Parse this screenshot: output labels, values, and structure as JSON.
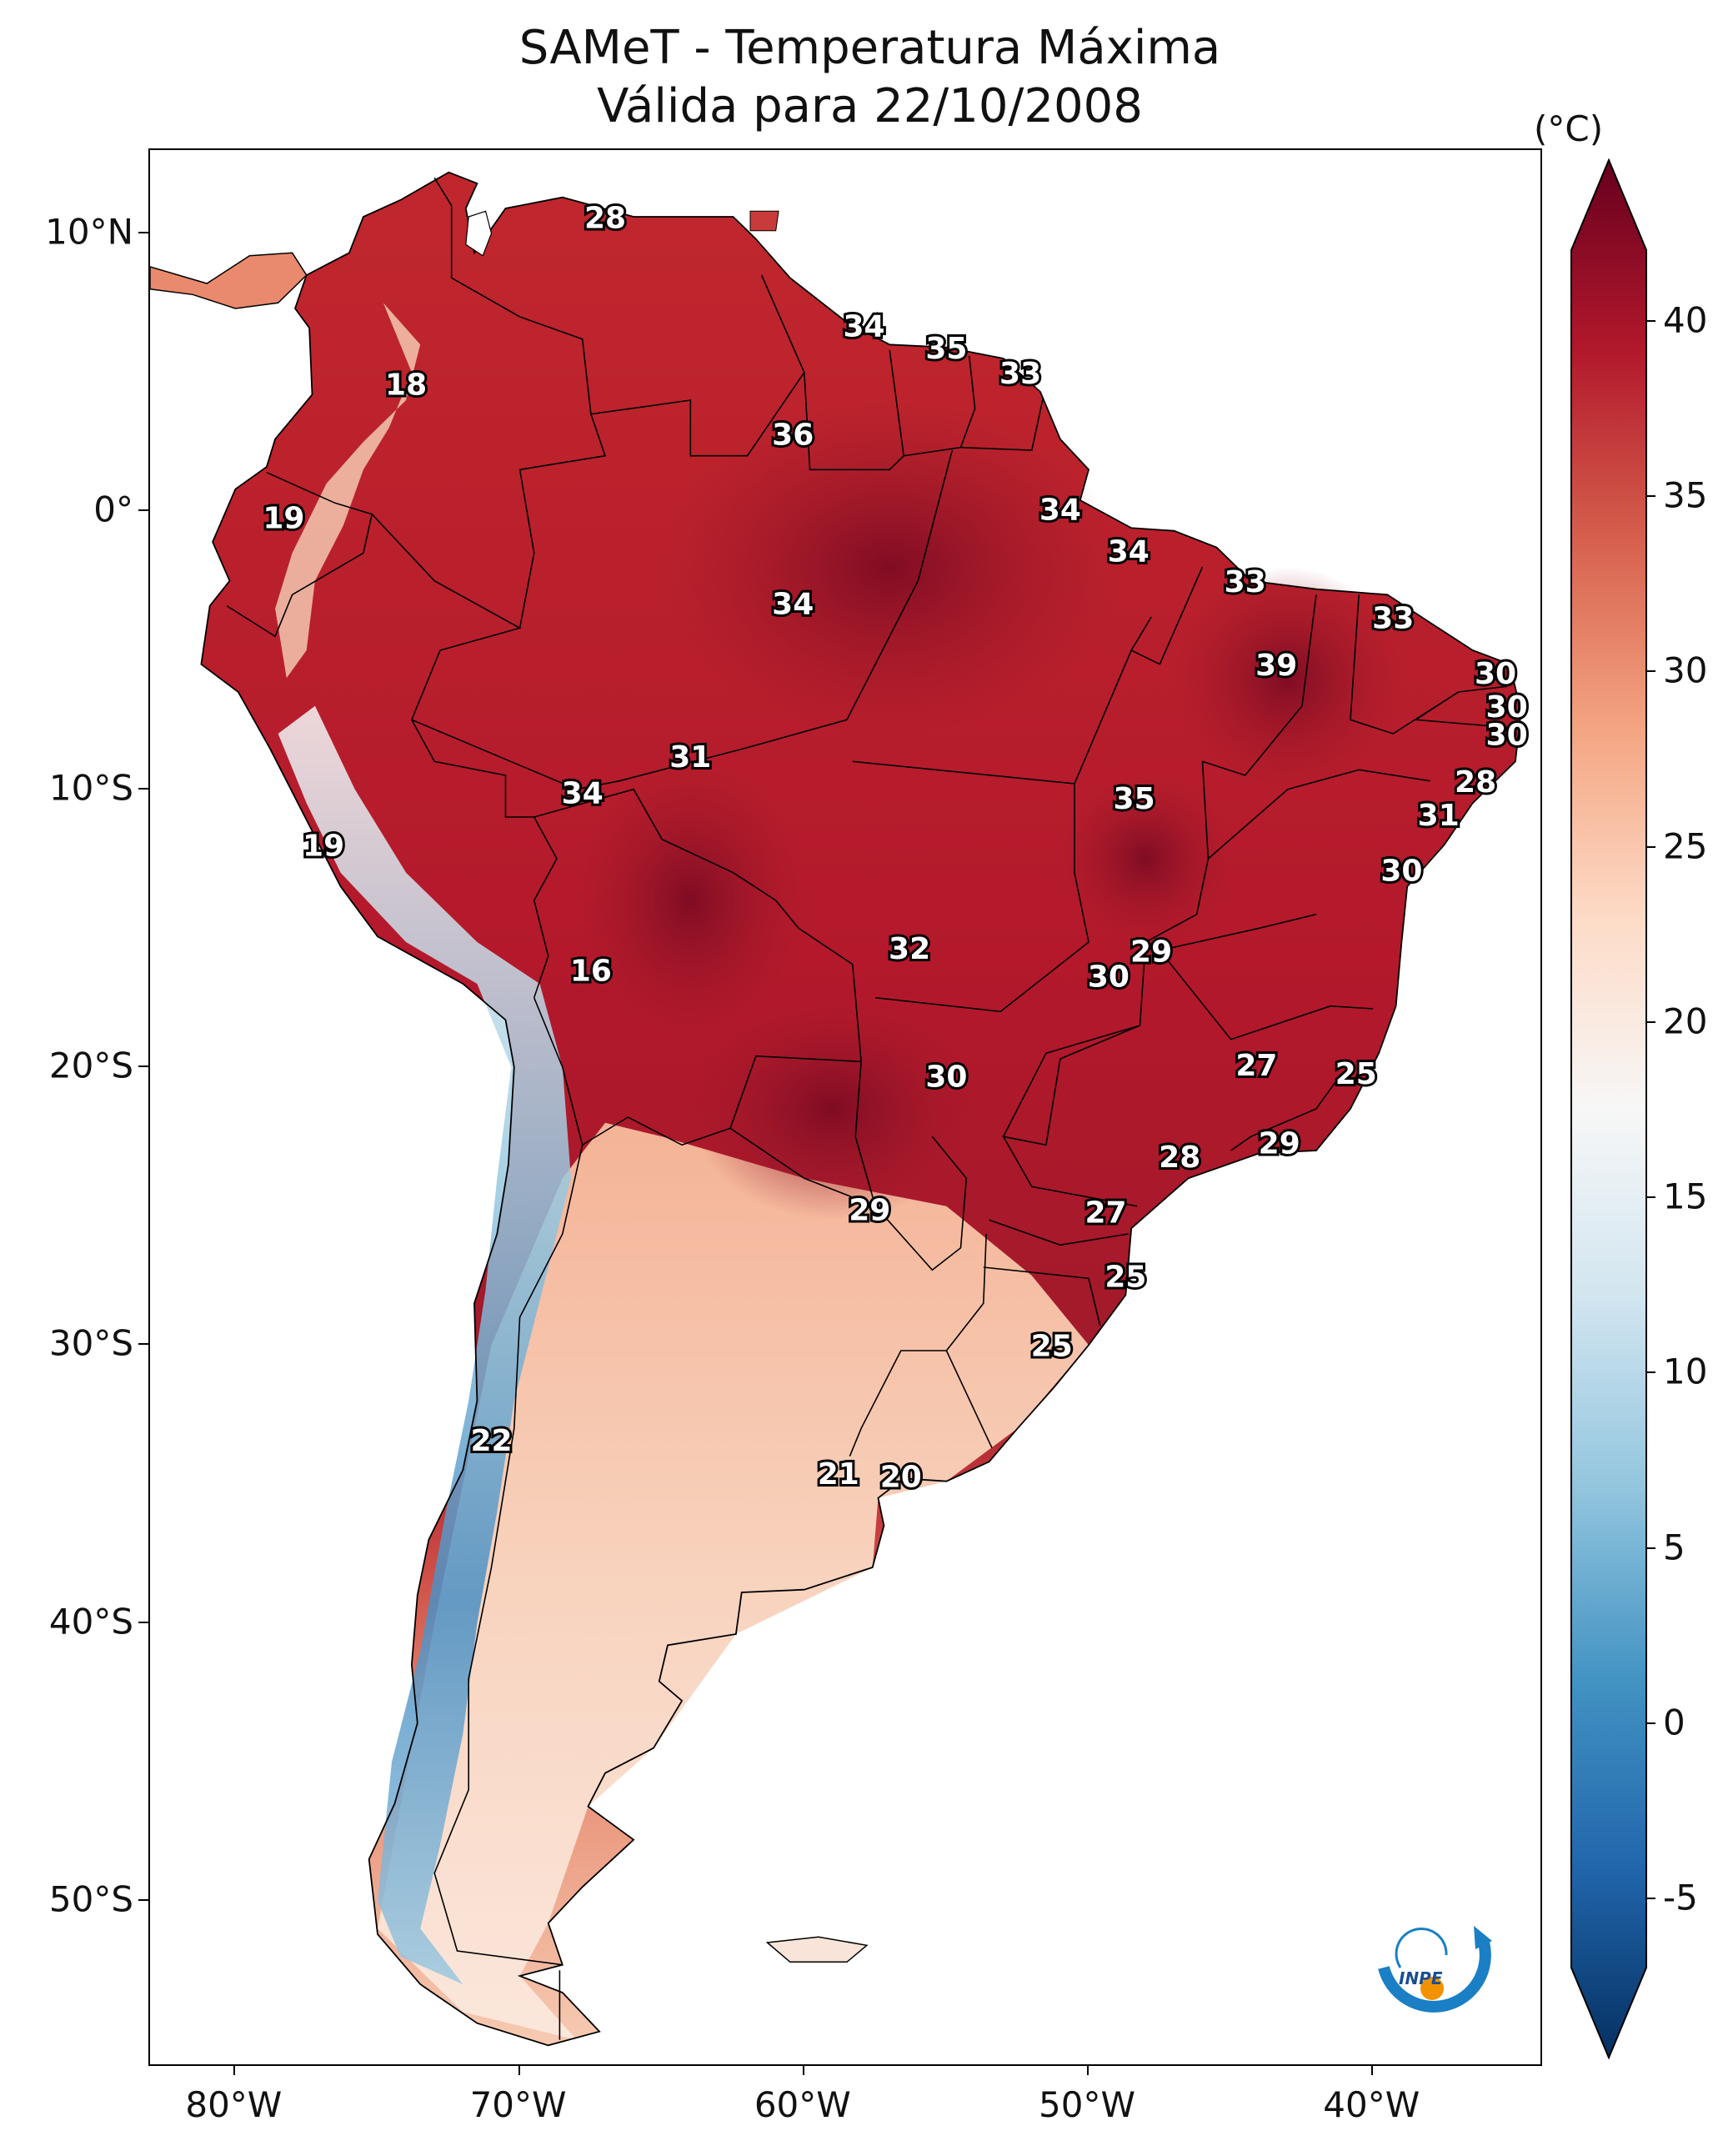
{
  "title": {
    "line1": "SAMeT - Temperatura Máxima",
    "line2": "Válida para 22/10/2008"
  },
  "colorbar": {
    "unit": "(°C)",
    "ticks": [
      "40",
      "35",
      "30",
      "25",
      "20",
      "15",
      "10",
      "5",
      "0",
      "-5"
    ],
    "tick_values": [
      40,
      35,
      30,
      25,
      20,
      15,
      10,
      5,
      0,
      -5
    ],
    "min": -7,
    "max": 42,
    "colors": [
      "#053061",
      "#2166ac",
      "#4393c3",
      "#92c5de",
      "#d1e5f0",
      "#f7f7f7",
      "#fddbc7",
      "#f4a582",
      "#d6604d",
      "#b2182b",
      "#67001f"
    ]
  },
  "axes": {
    "lat_labels": [
      "10°N",
      "0°",
      "10°S",
      "20°S",
      "30°S",
      "40°S",
      "50°S"
    ],
    "lat_values": [
      10,
      0,
      -10,
      -20,
      -30,
      -40,
      -50
    ],
    "lon_labels": [
      "80°W",
      "70°W",
      "60°W",
      "50°W",
      "40°W"
    ],
    "lon_values": [
      -80,
      -70,
      -60,
      -50,
      -40
    ],
    "lon_range": [
      -83,
      -34
    ],
    "lat_range": [
      -56,
      13
    ]
  },
  "temperature_labels": [
    {
      "text": "28",
      "lon": -67.0,
      "lat": 10.5
    },
    {
      "text": "18",
      "lon": -74.0,
      "lat": 4.5
    },
    {
      "text": "34",
      "lon": -57.9,
      "lat": 6.6
    },
    {
      "text": "35",
      "lon": -55.0,
      "lat": 5.8
    },
    {
      "text": "33",
      "lon": -52.4,
      "lat": 4.9
    },
    {
      "text": "36",
      "lon": -60.4,
      "lat": 2.7
    },
    {
      "text": "19",
      "lon": -78.3,
      "lat": -0.3
    },
    {
      "text": "34",
      "lon": -51.0,
      "lat": 0.0
    },
    {
      "text": "34",
      "lon": -48.6,
      "lat": -1.5
    },
    {
      "text": "33",
      "lon": -44.5,
      "lat": -2.6
    },
    {
      "text": "34",
      "lon": -60.4,
      "lat": -3.4
    },
    {
      "text": "33",
      "lon": -39.3,
      "lat": -3.9
    },
    {
      "text": "39",
      "lon": -43.4,
      "lat": -5.6
    },
    {
      "text": "30",
      "lon": -35.7,
      "lat": -5.9
    },
    {
      "text": "30",
      "lon": -35.3,
      "lat": -7.1
    },
    {
      "text": "30",
      "lon": -35.3,
      "lat": -8.1
    },
    {
      "text": "31",
      "lon": -64.0,
      "lat": -8.9
    },
    {
      "text": "28",
      "lon": -36.4,
      "lat": -9.8
    },
    {
      "text": "34",
      "lon": -67.8,
      "lat": -10.2
    },
    {
      "text": "35",
      "lon": -48.4,
      "lat": -10.4
    },
    {
      "text": "31",
      "lon": -37.7,
      "lat": -11.0
    },
    {
      "text": "19",
      "lon": -76.9,
      "lat": -12.1
    },
    {
      "text": "30",
      "lon": -39.0,
      "lat": -13.0
    },
    {
      "text": "32",
      "lon": -56.3,
      "lat": -15.8
    },
    {
      "text": "29",
      "lon": -47.8,
      "lat": -15.9
    },
    {
      "text": "30",
      "lon": -49.3,
      "lat": -16.8
    },
    {
      "text": "16",
      "lon": -67.5,
      "lat": -16.6
    },
    {
      "text": "27",
      "lon": -44.1,
      "lat": -20.0
    },
    {
      "text": "25",
      "lon": -40.6,
      "lat": -20.3
    },
    {
      "text": "30",
      "lon": -55.0,
      "lat": -20.4
    },
    {
      "text": "29",
      "lon": -43.3,
      "lat": -22.8
    },
    {
      "text": "28",
      "lon": -46.8,
      "lat": -23.3
    },
    {
      "text": "29",
      "lon": -57.7,
      "lat": -25.2
    },
    {
      "text": "27",
      "lon": -49.4,
      "lat": -25.3
    },
    {
      "text": "25",
      "lon": -48.7,
      "lat": -27.6
    },
    {
      "text": "25",
      "lon": -51.3,
      "lat": -30.1
    },
    {
      "text": "22",
      "lon": -71.0,
      "lat": -33.5
    },
    {
      "text": "21",
      "lon": -58.8,
      "lat": -34.7
    },
    {
      "text": "20",
      "lon": -56.6,
      "lat": -34.8
    }
  ],
  "logo": {
    "text": "INPE",
    "colors": {
      "arc": "#1a7fc4",
      "dot": "#f39200"
    }
  }
}
